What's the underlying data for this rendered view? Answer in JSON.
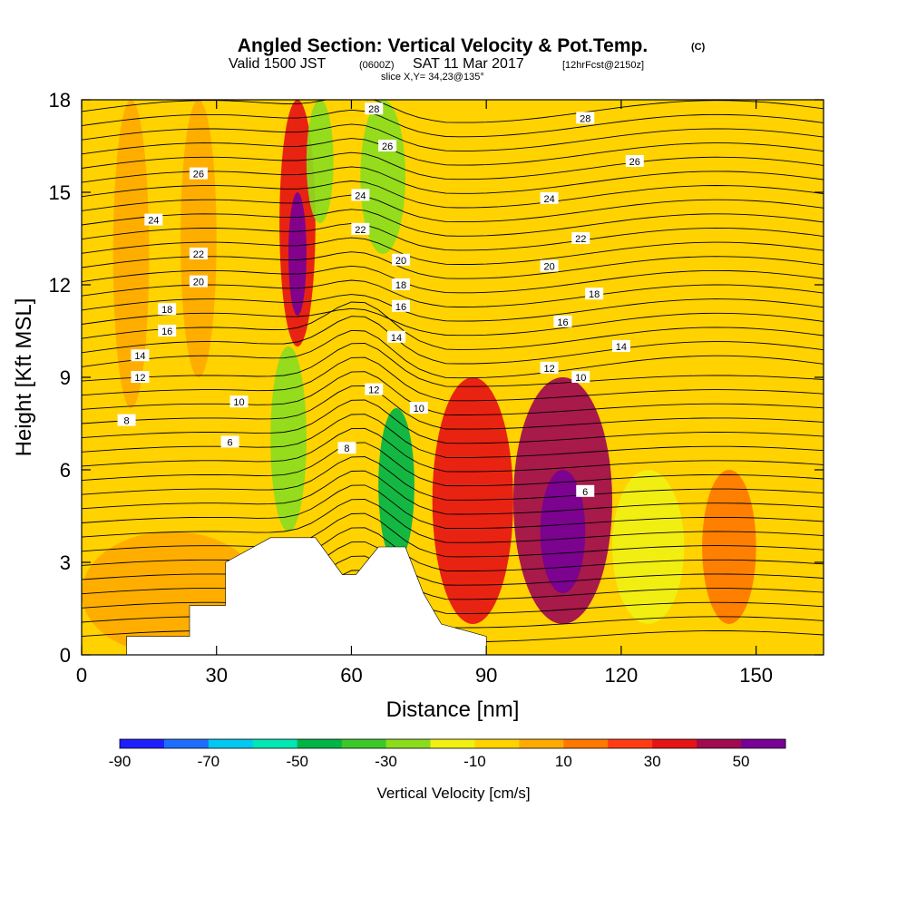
{
  "header": {
    "title_main": "Angled Section: Vertical Velocity & Pot.Temp.",
    "title_unit": "(C)",
    "valid_a": "Valid 1500 JST",
    "valid_b": "(0600Z)",
    "valid_c": "SAT 11 Mar 2017",
    "valid_d": "[12hrFcst@2150z]",
    "slice": "slice X,Y= 34,23@135°"
  },
  "chart_data": {
    "type": "heatmap",
    "xlabel": "Distance [nm]",
    "ylabel": "Height [Kft MSL]",
    "xlim": [
      0,
      165
    ],
    "ylim": [
      0,
      18
    ],
    "xticks": [
      "0",
      "30",
      "60",
      "90",
      "120",
      "150"
    ],
    "yticks": [
      "0",
      "3",
      "6",
      "9",
      "12",
      "15",
      "18"
    ],
    "colorbar": {
      "label": "Vertical Velocity [cm/s]",
      "levels": [
        -90,
        -80,
        -70,
        -60,
        -50,
        -40,
        -30,
        -20,
        -10,
        0,
        10,
        20,
        30,
        40,
        50,
        60
      ],
      "tick_labels": [
        "-90",
        "-70",
        "-50",
        "-30",
        "-10",
        "10",
        "30",
        "50"
      ],
      "colors": [
        "#1e1efe",
        "#1e6efe",
        "#00c8f0",
        "#00e6b4",
        "#00b446",
        "#3cc828",
        "#8cdc1e",
        "#f0f014",
        "#ffd200",
        "#ffaa00",
        "#ff7800",
        "#ff3c14",
        "#e61414",
        "#a00a50",
        "#780096"
      ]
    },
    "terrain": [
      [
        10,
        0
      ],
      [
        10,
        0.6
      ],
      [
        24,
        0.6
      ],
      [
        24,
        1.6
      ],
      [
        32,
        1.6
      ],
      [
        32,
        3.0
      ],
      [
        42,
        3.8
      ],
      [
        52,
        3.8
      ],
      [
        58,
        2.6
      ],
      [
        61,
        2.6
      ],
      [
        66,
        3.5
      ],
      [
        72,
        3.5
      ],
      [
        76,
        2.0
      ],
      [
        80,
        1.0
      ],
      [
        90,
        0.6
      ],
      [
        90,
        0
      ]
    ],
    "velocity_cells": [
      {
        "x": [
          0,
          50
        ],
        "y": [
          0,
          18
        ],
        "w": 0
      },
      {
        "x": [
          7,
          15
        ],
        "y": [
          8,
          18
        ],
        "w": 5
      },
      {
        "x": [
          22,
          30
        ],
        "y": [
          9,
          18
        ],
        "w": 5
      },
      {
        "x": [
          44,
          52
        ],
        "y": [
          10,
          18
        ],
        "w": 30
      },
      {
        "x": [
          46,
          50
        ],
        "y": [
          11,
          15
        ],
        "w": 50
      },
      {
        "x": [
          50,
          56
        ],
        "y": [
          14,
          18
        ],
        "w": -30
      },
      {
        "x": [
          62,
          72
        ],
        "y": [
          13,
          18
        ],
        "w": -30
      },
      {
        "x": [
          42,
          50
        ],
        "y": [
          4,
          10
        ],
        "w": -30
      },
      {
        "x": [
          66,
          74
        ],
        "y": [
          3,
          8
        ],
        "w": -50
      },
      {
        "x": [
          78,
          96
        ],
        "y": [
          1,
          9
        ],
        "w": 30
      },
      {
        "x": [
          96,
          118
        ],
        "y": [
          1,
          9
        ],
        "w": 40
      },
      {
        "x": [
          102,
          112
        ],
        "y": [
          2,
          6
        ],
        "w": 50
      },
      {
        "x": [
          118,
          134
        ],
        "y": [
          1,
          6
        ],
        "w": -20
      },
      {
        "x": [
          138,
          150
        ],
        "y": [
          1,
          6
        ],
        "w": 10
      },
      {
        "x": [
          0,
          40
        ],
        "y": [
          0,
          4
        ],
        "w": 5
      }
    ],
    "contour_labels": [
      {
        "text": "28",
        "x": 65,
        "y": 17.7
      },
      {
        "text": "28",
        "x": 112,
        "y": 17.4
      },
      {
        "text": "26",
        "x": 26,
        "y": 15.6
      },
      {
        "text": "26",
        "x": 68,
        "y": 16.5
      },
      {
        "text": "26",
        "x": 123,
        "y": 16.0
      },
      {
        "text": "24",
        "x": 16,
        "y": 14.1
      },
      {
        "text": "24",
        "x": 62,
        "y": 14.9
      },
      {
        "text": "24",
        "x": 104,
        "y": 14.8
      },
      {
        "text": "22",
        "x": 26,
        "y": 13.0
      },
      {
        "text": "22",
        "x": 62,
        "y": 13.8
      },
      {
        "text": "22",
        "x": 111,
        "y": 13.5
      },
      {
        "text": "20",
        "x": 26,
        "y": 12.1
      },
      {
        "text": "20",
        "x": 71,
        "y": 12.8
      },
      {
        "text": "20",
        "x": 104,
        "y": 12.6
      },
      {
        "text": "18",
        "x": 19,
        "y": 11.2
      },
      {
        "text": "18",
        "x": 71,
        "y": 12.0
      },
      {
        "text": "18",
        "x": 114,
        "y": 11.7
      },
      {
        "text": "16",
        "x": 19,
        "y": 10.5
      },
      {
        "text": "16",
        "x": 71,
        "y": 11.3
      },
      {
        "text": "16",
        "x": 107,
        "y": 10.8
      },
      {
        "text": "14",
        "x": 13,
        "y": 9.7
      },
      {
        "text": "14",
        "x": 70,
        "y": 10.3
      },
      {
        "text": "14",
        "x": 120,
        "y": 10.0
      },
      {
        "text": "12",
        "x": 13,
        "y": 9.0
      },
      {
        "text": "12",
        "x": 65,
        "y": 8.6
      },
      {
        "text": "12",
        "x": 104,
        "y": 9.3
      },
      {
        "text": "10",
        "x": 35,
        "y": 8.2
      },
      {
        "text": "10",
        "x": 75,
        "y": 8.0
      },
      {
        "text": "10",
        "x": 111,
        "y": 9.0
      },
      {
        "text": "8",
        "x": 10,
        "y": 7.6
      },
      {
        "text": "8",
        "x": 59,
        "y": 6.7
      },
      {
        "text": "6",
        "x": 33,
        "y": 6.9
      },
      {
        "text": "6",
        "x": 112,
        "y": 5.3
      }
    ]
  }
}
